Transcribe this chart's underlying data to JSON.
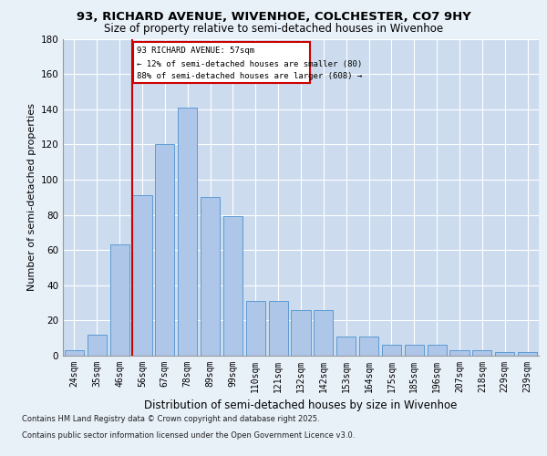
{
  "title1": "93, RICHARD AVENUE, WIVENHOE, COLCHESTER, CO7 9HY",
  "title2": "Size of property relative to semi-detached houses in Wivenhoe",
  "xlabel": "Distribution of semi-detached houses by size in Wivenhoe",
  "ylabel": "Number of semi-detached properties",
  "categories": [
    "24sqm",
    "35sqm",
    "46sqm",
    "56sqm",
    "67sqm",
    "78sqm",
    "89sqm",
    "99sqm",
    "110sqm",
    "121sqm",
    "132sqm",
    "142sqm",
    "153sqm",
    "164sqm",
    "175sqm",
    "185sqm",
    "196sqm",
    "207sqm",
    "218sqm",
    "229sqm",
    "239sqm"
  ],
  "values": [
    3,
    12,
    63,
    91,
    120,
    141,
    90,
    79,
    31,
    31,
    26,
    26,
    11,
    11,
    6,
    6,
    6,
    3,
    3,
    2,
    2
  ],
  "bar_color": "#aec6e8",
  "bar_edge_color": "#5b9bd5",
  "vline_index": 3,
  "vline_color": "#cc0000",
  "annotation_title": "93 RICHARD AVENUE: 57sqm",
  "annotation_line1": "← 12% of semi-detached houses are smaller (80)",
  "annotation_line2": "88% of semi-detached houses are larger (608) →",
  "annotation_box_color": "#cc0000",
  "footer1": "Contains HM Land Registry data © Crown copyright and database right 2025.",
  "footer2": "Contains public sector information licensed under the Open Government Licence v3.0.",
  "bg_color": "#e8f0f8",
  "plot_bg_color": "#ccdcee",
  "ylim": [
    0,
    180
  ],
  "yticks": [
    0,
    20,
    40,
    60,
    80,
    100,
    120,
    140,
    160,
    180
  ]
}
